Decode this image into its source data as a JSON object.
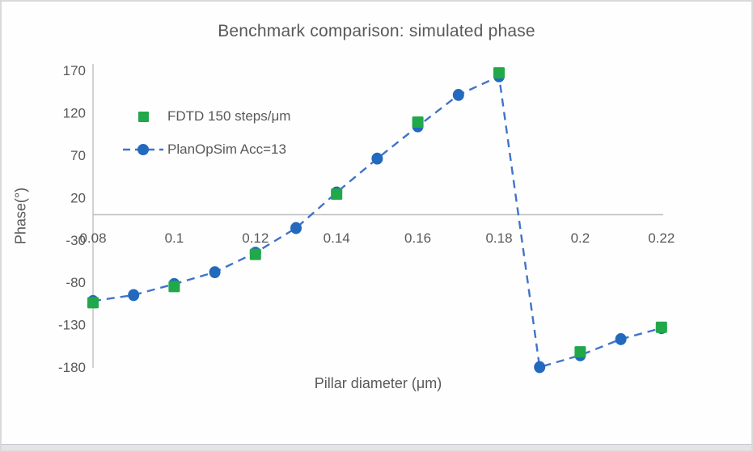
{
  "chart_data": {
    "type": "scatter",
    "title": "Benchmark comparison: simulated phase",
    "xlabel": "Pillar diameter (μm)",
    "ylabel": "Phase(°)",
    "xlim": [
      0.08,
      0.22
    ],
    "ylim": [
      -180,
      170
    ],
    "grid": false,
    "legend_position": "upper-left-inside",
    "axis_color": "#BFBFBF",
    "text_color": "#595959",
    "x_ticks": [
      {
        "value": 0.08,
        "label": "0.08"
      },
      {
        "value": 0.1,
        "label": "0.1"
      },
      {
        "value": 0.12,
        "label": "0.12"
      },
      {
        "value": 0.14,
        "label": "0.14"
      },
      {
        "value": 0.16,
        "label": "0.16"
      },
      {
        "value": 0.18,
        "label": "0.18"
      },
      {
        "value": 0.2,
        "label": "0.2"
      },
      {
        "value": 0.22,
        "label": "0.22"
      }
    ],
    "y_ticks": [
      {
        "value": 170,
        "label": "170"
      },
      {
        "value": 120,
        "label": "120"
      },
      {
        "value": 70,
        "label": "70"
      },
      {
        "value": 20,
        "label": "20"
      },
      {
        "value": -30,
        "label": "-30"
      },
      {
        "value": -80,
        "label": "-80"
      },
      {
        "value": -130,
        "label": "-130"
      },
      {
        "value": -180,
        "label": "-180"
      }
    ],
    "series": [
      {
        "name": "FDTD 150 steps/μm",
        "marker": "square",
        "color": "#21A849",
        "line": "none",
        "x": [
          0.08,
          0.1,
          0.12,
          0.14,
          0.16,
          0.18,
          0.2,
          0.22
        ],
        "y": [
          -104,
          -85,
          -47,
          24,
          109,
          167,
          -162,
          -133
        ]
      },
      {
        "name": "PlanOpSim Acc=13",
        "marker": "circle",
        "color": "#2369BE",
        "line": "dashed",
        "line_color": "#4173C8",
        "x": [
          0.08,
          0.09,
          0.1,
          0.11,
          0.12,
          0.13,
          0.14,
          0.15,
          0.16,
          0.17,
          0.18,
          0.19,
          0.2,
          0.21,
          0.22
        ],
        "y": [
          -102,
          -95,
          -82,
          -68,
          -45,
          -16,
          26,
          66,
          104,
          141,
          163,
          -180,
          -166,
          -147,
          -134
        ]
      }
    ]
  }
}
